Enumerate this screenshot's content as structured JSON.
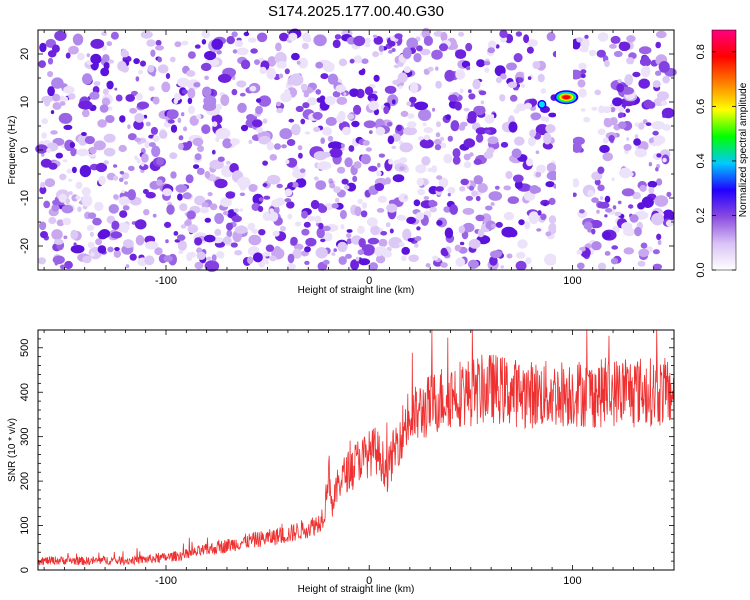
{
  "title": "S174.2025.177.00.40.G30",
  "chart_data": [
    {
      "type": "heatmap",
      "title": "S174.2025.177.00.40.G30",
      "xlabel": "Height of straight line (km)",
      "ylabel": "Frequency (Hz)",
      "xlim": [
        -163,
        150
      ],
      "ylim": [
        -25,
        25
      ],
      "x_ticks": [
        -100,
        0,
        100
      ],
      "x_tick_labels": [
        "-100",
        "0",
        "100"
      ],
      "y_ticks": [
        -20,
        -10,
        0,
        10,
        20
      ],
      "y_tick_labels": [
        "-20",
        "-10",
        "0",
        "10",
        "20"
      ],
      "colorbar": {
        "label": "Normalized spectral amplitude",
        "range": [
          0,
          0.88
        ],
        "ticks": [
          0.0,
          0.2,
          0.4,
          0.6,
          0.8
        ],
        "tick_labels": [
          "0.0",
          "0.2",
          "0.4",
          "0.6",
          "0.8"
        ]
      },
      "blank_column_km": [
        93,
        100
      ],
      "hot_spots": [
        {
          "x": 97,
          "y": 11,
          "amplitude": 0.88
        },
        {
          "x": 85,
          "y": 9.5,
          "amplitude": 0.5
        }
      ],
      "colormap": [
        "#ffffff",
        "#d9c2f5",
        "#8a4be0",
        "#2200ff",
        "#00c8ff",
        "#00ff00",
        "#ffff00",
        "#ff8000",
        "#ff0000",
        "#ff0080"
      ]
    },
    {
      "type": "line",
      "xlabel": "Height of straight line (km)",
      "ylabel": "SNR (10 * v/v)",
      "xlim": [
        -163,
        150
      ],
      "ylim": [
        0,
        540
      ],
      "x_ticks": [
        -100,
        0,
        100
      ],
      "x_tick_labels": [
        "-100",
        "0",
        "100"
      ],
      "y_ticks": [
        0,
        100,
        200,
        300,
        400,
        500
      ],
      "y_tick_labels": [
        "0",
        "100",
        "200",
        "300",
        "400",
        "500"
      ],
      "line_color": "#ee3030",
      "series": [
        {
          "x": [
            -163,
            -150,
            -140,
            -130,
            -120,
            -110,
            -100,
            -90,
            -80,
            -70,
            -60,
            -50,
            -40,
            -35,
            -30,
            -25,
            -22,
            -20,
            -18,
            -15,
            -12,
            -10,
            -8,
            -5,
            -2,
            0,
            3,
            6,
            9,
            12,
            15,
            18,
            21,
            25,
            30,
            35,
            40,
            45,
            50,
            55,
            60,
            65,
            70,
            80,
            90,
            100,
            110,
            120,
            130,
            140,
            150
          ],
          "y": [
            20,
            22,
            20,
            22,
            21,
            24,
            28,
            35,
            45,
            55,
            65,
            72,
            80,
            88,
            95,
            105,
            130,
            230,
            140,
            200,
            215,
            225,
            235,
            250,
            255,
            262,
            270,
            250,
            220,
            265,
            300,
            330,
            340,
            355,
            370,
            385,
            395,
            400,
            400,
            405,
            410,
            405,
            400,
            395,
            395,
            400,
            395,
            400,
            405,
            400,
            400
          ]
        }
      ]
    }
  ]
}
